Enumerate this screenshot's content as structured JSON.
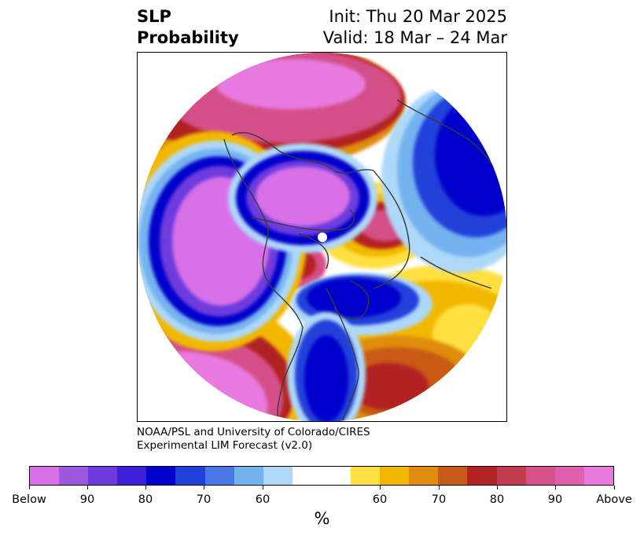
{
  "title": {
    "left_line1": "SLP",
    "left_line2": "Probability",
    "right_line1": "Init: Thu 20 Mar 2025",
    "right_line2": "Valid: 18 Mar – 24 Mar"
  },
  "credit": {
    "line1": "NOAA/PSL and University of Colorado/CIRES",
    "line2": "Experimental LIM Forecast (v2.0)"
  },
  "colorbar": {
    "unit": "%",
    "segments": [
      "#d870e8",
      "#9b59e0",
      "#6d3ade",
      "#3d1ed6",
      "#0000cc",
      "#2240da",
      "#4a78e8",
      "#74b2f0",
      "#aed8f8",
      "#ffffff",
      "#ffe040",
      "#f2b800",
      "#e08c10",
      "#c85a18",
      "#b22424",
      "#c43c50",
      "#d45088",
      "#e060b0",
      "#e87ae0"
    ],
    "ticks": [
      "Below",
      "90",
      "80",
      "70",
      "60",
      "60",
      "70",
      "80",
      "90",
      "Above"
    ]
  },
  "map": {
    "colors": {
      "above_strong": "#e87ae0",
      "above": "#d45088",
      "red": "#b22424",
      "orange": "#c85a18",
      "gold": "#e08c10",
      "yellow": "#f2b800",
      "light_yellow": "#ffe040",
      "light_blue": "#aed8f8",
      "mid_blue": "#74b2f0",
      "blue": "#2240da",
      "deep_blue": "#0000cc",
      "purple_blue": "#6d3ade",
      "below": "#d870e8",
      "coast": "#3a3a3a"
    }
  }
}
